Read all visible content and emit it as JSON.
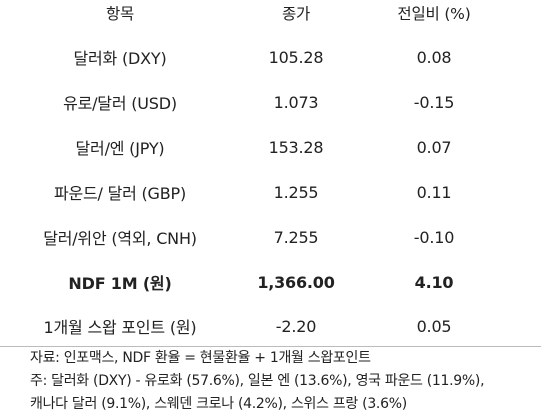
{
  "table": {
    "headers": [
      "항목",
      "종가",
      "전일비 (%)"
    ],
    "rows": [
      {
        "item": "달러화 (DXY)",
        "close": "105.28",
        "change": "0.08",
        "bold": false
      },
      {
        "item": "유로/달러 (USD)",
        "close": "1.073",
        "change": "-0.15",
        "bold": false
      },
      {
        "item": "달러/엔 (JPY)",
        "close": "153.28",
        "change": "0.07",
        "bold": false
      },
      {
        "item": "파운드/ 달러 (GBP)",
        "close": "1.255",
        "change": "0.11",
        "bold": false
      },
      {
        "item": "달러/위안 (역외, CNH)",
        "close": "7.255",
        "change": "-0.10",
        "bold": false
      },
      {
        "item": "NDF 1M (원)",
        "close": "1,366.00",
        "change": "4.10",
        "bold": true
      },
      {
        "item": "1개월 스왑 포인트 (원)",
        "close": "-2.20",
        "change": "0.05",
        "bold": false
      }
    ]
  },
  "notes": {
    "source": "자료: 인포맥스, NDF 환율 = 현물환율 + 1개월 스왑포인트",
    "note_line1": "주: 달러화 (DXY) - 유로화 (57.6%), 일본 엔 (13.6%), 영국 파운드 (11.9%),",
    "note_line2": "캐나다 달러 (9.1%), 스웨덴 크로나 (4.2%), 스위스 프랑 (3.6%)"
  }
}
